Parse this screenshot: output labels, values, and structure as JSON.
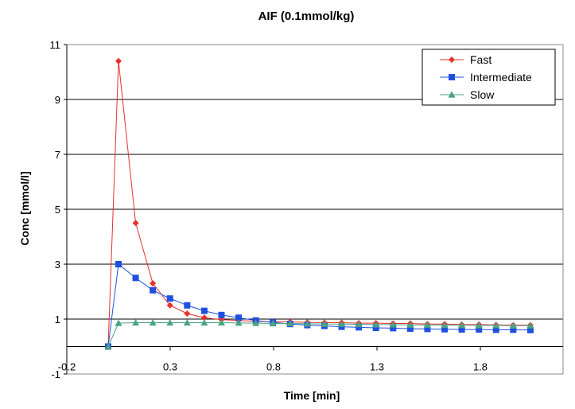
{
  "chart_data": {
    "type": "line",
    "title": "AIF (0.1mmol/kg)",
    "xlabel": "Time [min]",
    "ylabel": "Conc [mmol/l]",
    "xlim": [
      -0.2,
      2.2
    ],
    "ylim": [
      -1,
      11
    ],
    "xticks": [
      -0.2,
      0.3,
      0.8,
      1.3,
      1.8
    ],
    "xtick_labels": [
      "-0.2",
      "0.3",
      "0.8",
      "1.3",
      "1.8"
    ],
    "yticks": [
      -1,
      1,
      3,
      5,
      7,
      9,
      11
    ],
    "ytick_labels": [
      "-1",
      "1",
      "3",
      "5",
      "7",
      "9",
      "11"
    ],
    "grid": "horizontal",
    "legend_position": "top-right",
    "x": [
      0.0,
      0.05,
      0.133,
      0.216,
      0.299,
      0.382,
      0.465,
      0.548,
      0.631,
      0.714,
      0.797,
      0.88,
      0.963,
      1.046,
      1.129,
      1.212,
      1.295,
      1.378,
      1.461,
      1.544,
      1.627,
      1.71,
      1.793,
      1.876,
      1.959,
      2.042
    ],
    "series": [
      {
        "name": "Fast",
        "color": "#e8302a",
        "marker": "diamond",
        "values": [
          0,
          10.4,
          4.5,
          2.3,
          1.5,
          1.2,
          1.05,
          0.98,
          0.95,
          0.92,
          0.9,
          0.9,
          0.88,
          0.87,
          0.87,
          0.85,
          0.85,
          0.84,
          0.84,
          0.82,
          0.82,
          0.8,
          0.8,
          0.79,
          0.78,
          0.78
        ]
      },
      {
        "name": "Intermediate",
        "color": "#1f4fe0",
        "marker": "square",
        "values": [
          0,
          3.0,
          2.5,
          2.05,
          1.75,
          1.5,
          1.3,
          1.15,
          1.05,
          0.95,
          0.88,
          0.82,
          0.78,
          0.75,
          0.72,
          0.7,
          0.68,
          0.67,
          0.65,
          0.64,
          0.63,
          0.62,
          0.62,
          0.61,
          0.61,
          0.6
        ]
      },
      {
        "name": "Slow",
        "color": "#4aa383",
        "marker": "triangle",
        "values": [
          0,
          0.85,
          0.87,
          0.87,
          0.87,
          0.87,
          0.87,
          0.87,
          0.86,
          0.85,
          0.84,
          0.84,
          0.83,
          0.82,
          0.82,
          0.81,
          0.8,
          0.8,
          0.79,
          0.79,
          0.78,
          0.78,
          0.77,
          0.77,
          0.76,
          0.76
        ]
      }
    ]
  }
}
